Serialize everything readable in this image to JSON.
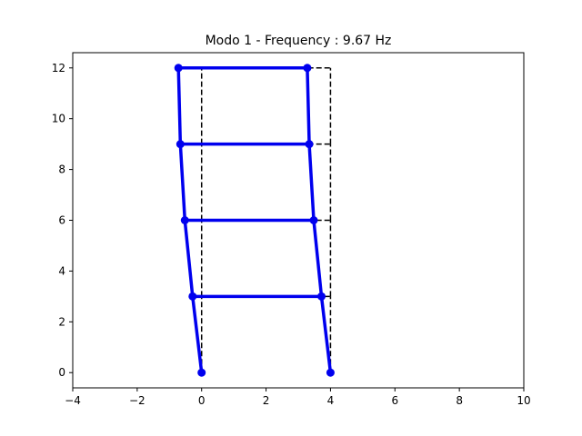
{
  "chart_data": {
    "type": "line",
    "title": "Modo 1 - Frequency : 9.67 Hz",
    "xlabel": "",
    "ylabel": "",
    "xlim": [
      -4,
      10
    ],
    "ylim": [
      -0.6,
      12.6
    ],
    "xticks": [
      -4,
      -2,
      0,
      2,
      4,
      6,
      8,
      10
    ],
    "yticks": [
      0,
      2,
      4,
      6,
      8,
      10,
      12
    ],
    "grid": false,
    "legend": false,
    "series": [
      {
        "style": "undeformed",
        "color": "#000000",
        "dashed": true,
        "segments": [
          [
            [
              0,
              0
            ],
            [
              0,
              3
            ]
          ],
          [
            [
              0,
              3
            ],
            [
              0,
              6
            ]
          ],
          [
            [
              0,
              6
            ],
            [
              0,
              9
            ]
          ],
          [
            [
              0,
              9
            ],
            [
              0,
              12
            ]
          ],
          [
            [
              4,
              0
            ],
            [
              4,
              3
            ]
          ],
          [
            [
              4,
              3
            ],
            [
              4,
              6
            ]
          ],
          [
            [
              4,
              6
            ],
            [
              4,
              9
            ]
          ],
          [
            [
              4,
              9
            ],
            [
              4,
              12
            ]
          ],
          [
            [
              0,
              3
            ],
            [
              4,
              3
            ]
          ],
          [
            [
              0,
              6
            ],
            [
              4,
              6
            ]
          ],
          [
            [
              0,
              9
            ],
            [
              4,
              9
            ]
          ],
          [
            [
              0,
              12
            ],
            [
              4,
              12
            ]
          ]
        ]
      },
      {
        "style": "mode-shape",
        "color": "#0000ee",
        "dashed": false,
        "markers": true,
        "segments": [
          [
            [
              0,
              0
            ],
            [
              -0.28,
              3
            ]
          ],
          [
            [
              -0.28,
              3
            ],
            [
              -0.52,
              6
            ]
          ],
          [
            [
              -0.52,
              6
            ],
            [
              -0.66,
              9
            ]
          ],
          [
            [
              -0.66,
              9
            ],
            [
              -0.72,
              12
            ]
          ],
          [
            [
              4,
              0
            ],
            [
              3.72,
              3
            ]
          ],
          [
            [
              3.72,
              3
            ],
            [
              3.48,
              6
            ]
          ],
          [
            [
              3.48,
              6
            ],
            [
              3.34,
              9
            ]
          ],
          [
            [
              3.34,
              9
            ],
            [
              3.28,
              12
            ]
          ],
          [
            [
              -0.28,
              3
            ],
            [
              3.72,
              3
            ]
          ],
          [
            [
              -0.52,
              6
            ],
            [
              3.48,
              6
            ]
          ],
          [
            [
              -0.66,
              9
            ],
            [
              3.34,
              9
            ]
          ],
          [
            [
              -0.72,
              12
            ],
            [
              3.28,
              12
            ]
          ]
        ]
      }
    ]
  }
}
